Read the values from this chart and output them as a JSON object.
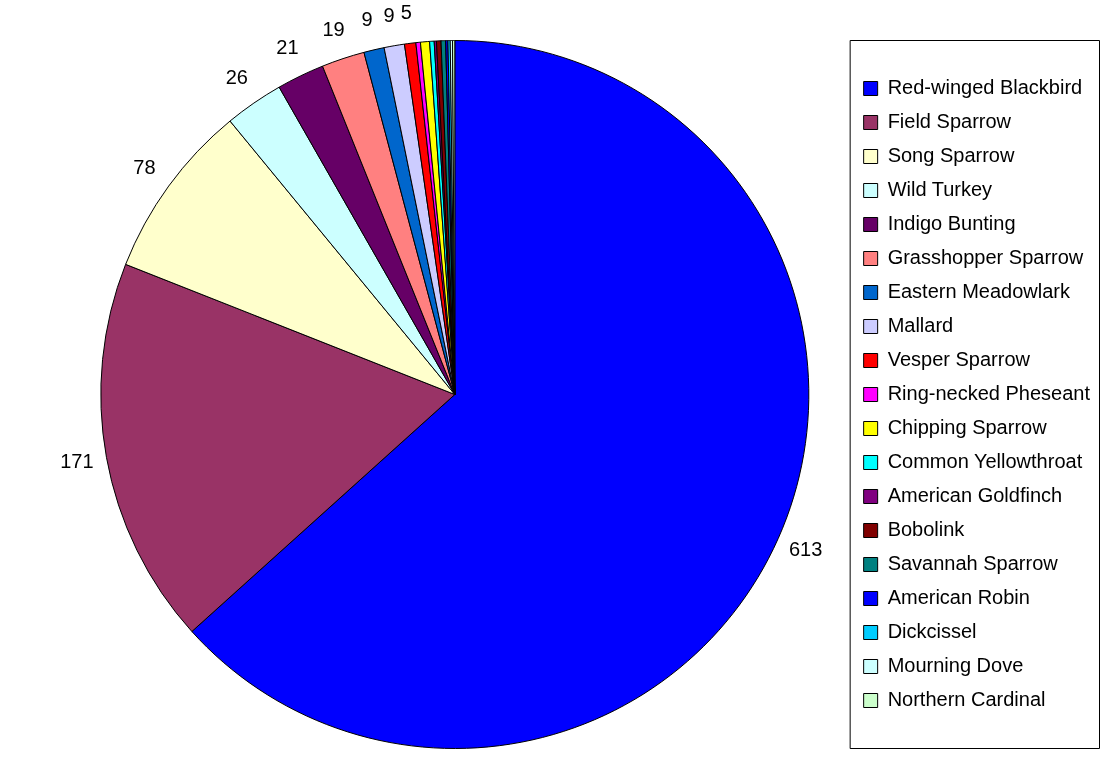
{
  "chart_data": {
    "type": "pie",
    "categories": [
      "Red-winged Blackbird",
      "Field Sparrow",
      "Song Sparrow",
      "Wild Turkey",
      "Indigo Bunting",
      "Grasshopper Sparrow",
      "Eastern Meadowlark",
      "Mallard",
      "Vesper Sparrow",
      "Ring-necked Pheseant",
      "Chipping Sparrow",
      "Common Yellowthroat",
      "American Goldfinch",
      "Bobolink",
      "Savannah Sparrow",
      "American Robin",
      "Dickcissel",
      "Mourning Dove",
      "Northern Cardinal"
    ],
    "values": [
      613,
      171,
      78,
      26,
      21,
      19,
      9,
      9,
      5,
      2,
      4,
      2,
      1,
      2,
      2,
      1,
      1,
      1,
      1
    ],
    "colors": [
      "#0000ff",
      "#993366",
      "#ffffcc",
      "#ccffff",
      "#660066",
      "#ff8080",
      "#0066cc",
      "#ccccff",
      "#ff0000",
      "#ff00ff",
      "#ffff00",
      "#00ffff",
      "#800080",
      "#800000",
      "#008080",
      "#0000ff",
      "#00ccff",
      "#ccffff",
      "#ccffcc"
    ],
    "value_labels": [
      "613",
      "171",
      "78",
      "26",
      "21",
      "19",
      "9",
      "9",
      "5",
      null,
      null,
      null,
      null,
      null,
      null,
      null,
      null,
      null,
      null
    ],
    "legend": "right"
  }
}
